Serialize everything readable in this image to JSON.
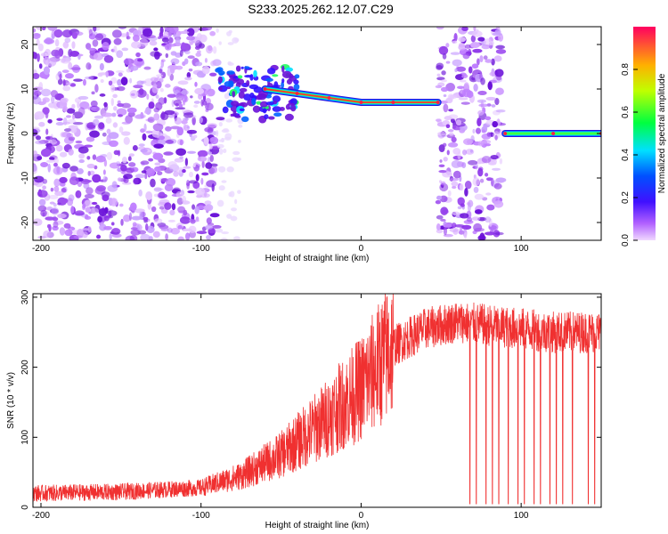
{
  "title": "S233.2025.262.12.07.C29",
  "colors": {
    "spectrum_low": "#9b30ff",
    "spectrum_mid": "#00e5ff",
    "spectrum_high": "#ff3030",
    "snr_line": "#f03030",
    "axis": "#000000"
  },
  "chart_data": [
    {
      "type": "heatmap",
      "title": "S233.2025.262.12.07.C29",
      "xlabel": "Height of straight line (km)",
      "ylabel": "Frequency (Hz)",
      "xlim": [
        -205,
        150
      ],
      "ylim": [
        -24,
        24
      ],
      "xticks": [
        -200,
        -100,
        0,
        100
      ],
      "yticks": [
        -20,
        -10,
        0,
        10,
        20
      ],
      "tone_track": [
        {
          "x": -60,
          "freq": 10
        },
        {
          "x": -40,
          "freq": 9
        },
        {
          "x": -20,
          "freq": 8
        },
        {
          "x": 0,
          "freq": 7
        },
        {
          "x": 20,
          "freq": 7
        },
        {
          "x": 48,
          "freq": 7
        },
        {
          "x": 90,
          "freq": 0
        },
        {
          "x": 120,
          "freq": 0
        },
        {
          "x": 150,
          "freq": 0
        }
      ],
      "noise_regions": [
        {
          "from": -205,
          "to": -90,
          "level": "broadband"
        },
        {
          "from": 48,
          "to": 88,
          "level": "broadband"
        }
      ],
      "colorbar": {
        "label": "Normalized spectral amplitude",
        "range": [
          0,
          1
        ],
        "ticks": [
          "0.0",
          "0.2",
          "0.4",
          "0.6",
          "0.8"
        ]
      }
    },
    {
      "type": "line",
      "xlabel": "Height of straight line (km)",
      "ylabel": "SNR (10 * v/v)",
      "xlim": [
        -205,
        150
      ],
      "ylim": [
        0,
        305
      ],
      "xticks": [
        -200,
        -100,
        0,
        100
      ],
      "yticks": [
        0,
        100,
        200,
        300
      ],
      "series": [
        {
          "name": "SNR",
          "trend_x": [
            -205,
            -150,
            -100,
            -75,
            -50,
            -25,
            0,
            20,
            40,
            60,
            80,
            100,
            120,
            150
          ],
          "trend_y": [
            20,
            22,
            28,
            45,
            75,
            120,
            170,
            230,
            255,
            265,
            260,
            255,
            250,
            250
          ],
          "dropouts_x": [
            68,
            72,
            78,
            82,
            86,
            92,
            98,
            102,
            108,
            112,
            118,
            122,
            126,
            132,
            142,
            146
          ],
          "dropout_floor": 5
        }
      ]
    }
  ]
}
